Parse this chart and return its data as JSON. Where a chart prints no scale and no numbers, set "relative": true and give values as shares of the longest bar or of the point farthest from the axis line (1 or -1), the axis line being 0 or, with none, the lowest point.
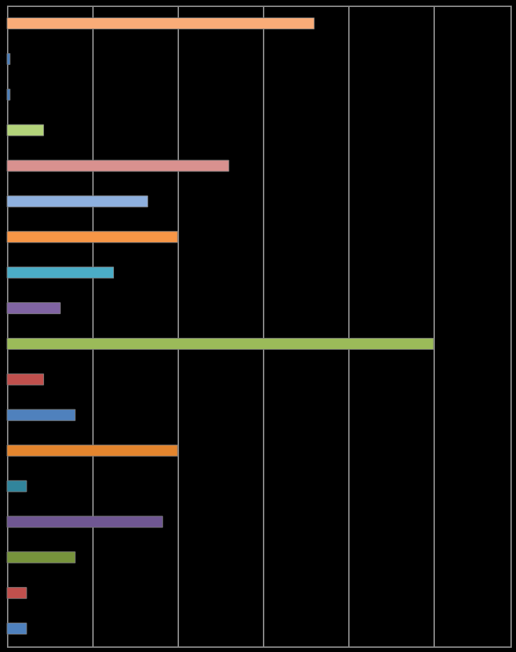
{
  "chart_data": {
    "type": "bar",
    "orientation": "horizontal",
    "relative": true,
    "grid": "x",
    "categories": [
      null,
      null,
      null,
      null,
      null,
      null,
      null,
      null,
      null,
      null,
      null,
      null,
      null,
      null,
      null,
      null,
      null,
      null
    ],
    "values": [
      0.72,
      0.007,
      0.007,
      0.086,
      0.52,
      0.33,
      0.4,
      0.25,
      0.125,
      1,
      0.086,
      0.16,
      0.4,
      0.046,
      0.365,
      0.16,
      0.046,
      0.046
    ],
    "colors": [
      "#f9ac78",
      "#4a7ebb",
      "#4a7ebb",
      "#b3d37a",
      "#d9918f",
      "#8eb0de",
      "#f79646",
      "#4bacc6",
      "#8064a2",
      "#9bbb59",
      "#c0504d",
      "#4f81bd",
      "#e3852e",
      "#31859c",
      "#6f5792",
      "#77933c",
      "#c0504d",
      "#4f81bd"
    ]
  }
}
